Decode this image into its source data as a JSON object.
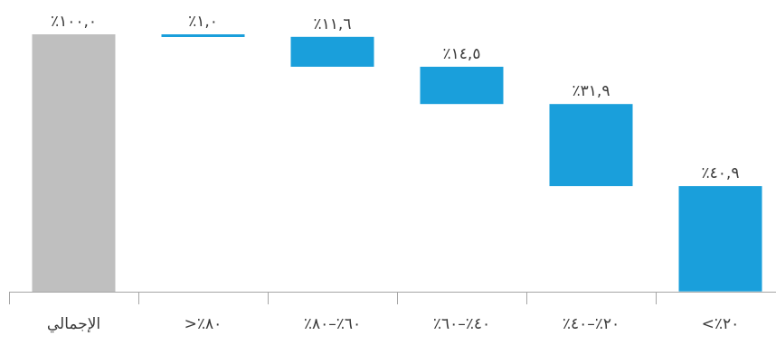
{
  "chart_data": {
    "type": "bar",
    "subtype": "waterfall",
    "direction": "rtl",
    "categories": [
      "الإجمالي",
      "٨٠٪<",
      "٦٠٪–٨٠٪",
      "٤٠٪–٦٠٪",
      "٢٠٪–٤٠٪",
      "٢٠٪>"
    ],
    "values": [
      100.0,
      1.0,
      11.6,
      14.5,
      31.9,
      40.9
    ],
    "value_labels": [
      "٪١٠٠,٠",
      "٪١,٠",
      "٪١١,٦",
      "٪١٤,٥",
      "٪٣١,٩",
      "٪٤٠,٩"
    ],
    "total_index": 0,
    "ylim": [
      0,
      100
    ],
    "grid": false,
    "legend": "none",
    "title": "",
    "xlabel": "",
    "ylabel": "",
    "colors": {
      "total": "#bfbfbf",
      "step": "#1a9fdb",
      "axis": "#a6a6a6",
      "text": "#3a3a3a"
    }
  }
}
